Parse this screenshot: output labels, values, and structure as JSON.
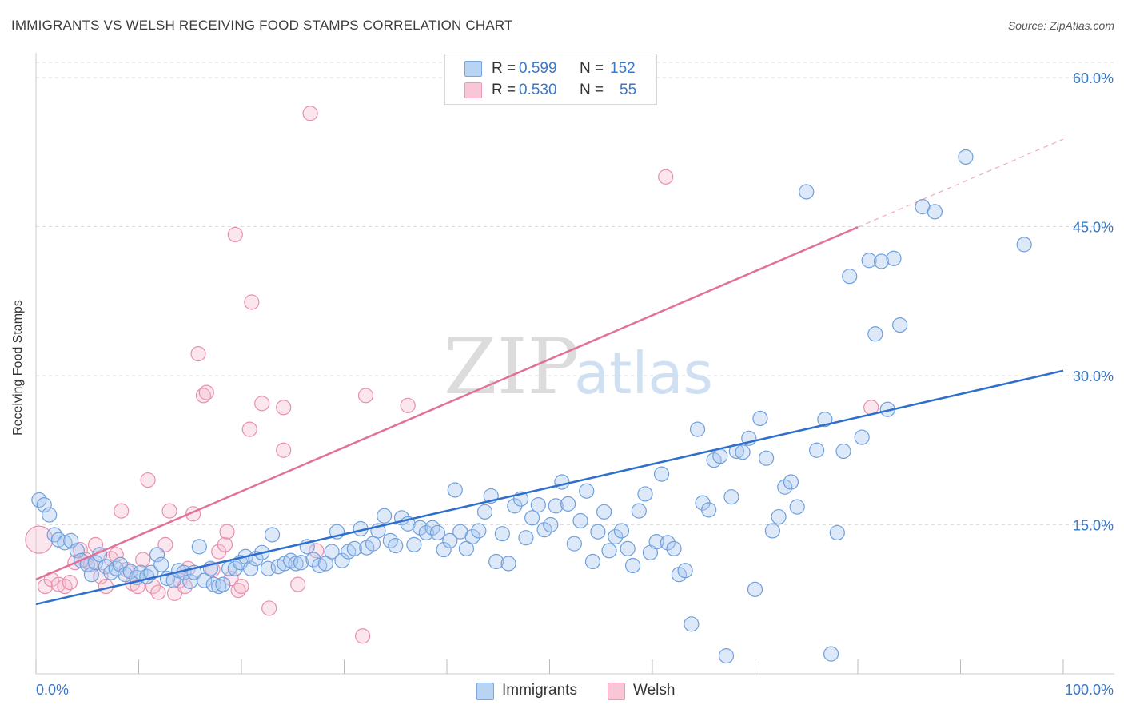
{
  "title": "IMMIGRANTS VS WELSH RECEIVING FOOD STAMPS CORRELATION CHART",
  "source": "Source: ZipAtlas.com",
  "watermark": {
    "zip": "ZIP",
    "atlas": "atlas"
  },
  "legend": {
    "rows": [
      {
        "r_label": "R =",
        "r_value": "0.599",
        "n_label": "N =",
        "n_value": "152"
      },
      {
        "r_label": "R =",
        "r_value": "0.530",
        "n_label": "N =",
        "n_value": "55"
      }
    ]
  },
  "bottom_legend": [
    "Immigrants",
    "Welsh"
  ],
  "colors": {
    "immigrants_fill": "#a9c8f0",
    "immigrants_stroke": "#6f9fdc",
    "immigrants_line": "#2f6fcc",
    "welsh_fill": "#f6b8cb",
    "welsh_stroke": "#e88fae",
    "welsh_line": "#e2719a",
    "tick_label": "#3a78c8",
    "grid": "#dddddd"
  },
  "chart_data": {
    "type": "scatter",
    "title": "IMMIGRANTS VS WELSH RECEIVING FOOD STAMPS CORRELATION CHART",
    "xlabel": "",
    "ylabel": "Receiving Food Stamps",
    "xlim": [
      0,
      100
    ],
    "ylim": [
      0,
      60
    ],
    "x_tick_labels": [
      "0.0%",
      "100.0%"
    ],
    "y_ticks": [
      15,
      30,
      45,
      60
    ],
    "y_tick_labels": [
      "15.0%",
      "30.0%",
      "45.0%",
      "60.0%"
    ],
    "grid": "horizontal dashed",
    "legend_placement": "top-center",
    "series": [
      {
        "name": "Immigrants",
        "r": 0.599,
        "n": 152,
        "trend": {
          "x": [
            0,
            100
          ],
          "y": [
            7.0,
            30.5
          ],
          "dashed_from": null
        },
        "points": [
          [
            0.3,
            17.5
          ],
          [
            0.8,
            17
          ],
          [
            1.3,
            16
          ],
          [
            1.8,
            14
          ],
          [
            2.2,
            13.5
          ],
          [
            2.8,
            13.2
          ],
          [
            3.4,
            13.4
          ],
          [
            4,
            12.4
          ],
          [
            4.4,
            11.4
          ],
          [
            5,
            11
          ],
          [
            5.4,
            10
          ],
          [
            5.8,
            11.2
          ],
          [
            6.2,
            12
          ],
          [
            6.8,
            10.8
          ],
          [
            7.3,
            10.2
          ],
          [
            7.8,
            10.6
          ],
          [
            8.2,
            11
          ],
          [
            8.7,
            10
          ],
          [
            9.2,
            10.3
          ],
          [
            9.8,
            9.7
          ],
          [
            10.2,
            10.2
          ],
          [
            10.8,
            9.8
          ],
          [
            11.2,
            10.2
          ],
          [
            11.8,
            12
          ],
          [
            12.2,
            11
          ],
          [
            12.8,
            9.6
          ],
          [
            13.4,
            9.4
          ],
          [
            13.9,
            10.4
          ],
          [
            14.4,
            10.2
          ],
          [
            15,
            9.3
          ],
          [
            15.4,
            10.2
          ],
          [
            15.9,
            12.8
          ],
          [
            16.4,
            9.4
          ],
          [
            17,
            10.6
          ],
          [
            17.3,
            9
          ],
          [
            17.8,
            8.8
          ],
          [
            18.2,
            9
          ],
          [
            18.8,
            10.6
          ],
          [
            19.4,
            10.6
          ],
          [
            19.9,
            11.2
          ],
          [
            20.4,
            11.8
          ],
          [
            20.9,
            10.6
          ],
          [
            21.4,
            11.6
          ],
          [
            22,
            12.2
          ],
          [
            22.6,
            10.6
          ],
          [
            23,
            14
          ],
          [
            23.6,
            10.8
          ],
          [
            24.2,
            11.1
          ],
          [
            24.8,
            11.4
          ],
          [
            25.3,
            11.1
          ],
          [
            25.8,
            11.2
          ],
          [
            26.4,
            12.8
          ],
          [
            27,
            11.5
          ],
          [
            27.6,
            10.9
          ],
          [
            28.2,
            11.1
          ],
          [
            28.8,
            12.3
          ],
          [
            29.3,
            14.3
          ],
          [
            29.8,
            11.4
          ],
          [
            30.4,
            12.3
          ],
          [
            31,
            12.6
          ],
          [
            31.6,
            14.6
          ],
          [
            32.2,
            12.7
          ],
          [
            32.8,
            13.1
          ],
          [
            33.3,
            14.4
          ],
          [
            33.9,
            15.9
          ],
          [
            34.5,
            13.4
          ],
          [
            35,
            12.9
          ],
          [
            35.6,
            15.7
          ],
          [
            36.2,
            15.1
          ],
          [
            36.8,
            13
          ],
          [
            37.4,
            14.7
          ],
          [
            38,
            14.2
          ],
          [
            38.6,
            14.7
          ],
          [
            39.1,
            14.2
          ],
          [
            39.7,
            12.5
          ],
          [
            40.3,
            13.4
          ],
          [
            40.8,
            18.5
          ],
          [
            41.3,
            14.3
          ],
          [
            41.9,
            12.6
          ],
          [
            42.5,
            13.8
          ],
          [
            43.1,
            14.4
          ],
          [
            43.7,
            16.3
          ],
          [
            44.3,
            17.9
          ],
          [
            44.8,
            11.3
          ],
          [
            45.4,
            14.1
          ],
          [
            46,
            11.1
          ],
          [
            46.6,
            16.9
          ],
          [
            47.2,
            17.6
          ],
          [
            47.7,
            13.7
          ],
          [
            48.3,
            15.7
          ],
          [
            48.9,
            17
          ],
          [
            49.5,
            14.5
          ],
          [
            50.1,
            15
          ],
          [
            50.6,
            16.9
          ],
          [
            51.2,
            19.3
          ],
          [
            51.8,
            17.1
          ],
          [
            52.4,
            13.1
          ],
          [
            53,
            15.4
          ],
          [
            53.6,
            18.4
          ],
          [
            54.2,
            11.3
          ],
          [
            54.7,
            14.3
          ],
          [
            55.3,
            16.3
          ],
          [
            55.8,
            12.4
          ],
          [
            56.4,
            13.8
          ],
          [
            57,
            14.4
          ],
          [
            57.6,
            12.6
          ],
          [
            58.1,
            10.9
          ],
          [
            58.7,
            16.4
          ],
          [
            59.3,
            18.1
          ],
          [
            59.8,
            12.2
          ],
          [
            60.4,
            13.3
          ],
          [
            60.9,
            20.1
          ],
          [
            61.5,
            13.2
          ],
          [
            62.1,
            12.6
          ],
          [
            62.6,
            10
          ],
          [
            63.2,
            10.4
          ],
          [
            63.8,
            5
          ],
          [
            64.4,
            24.6
          ],
          [
            64.9,
            17.2
          ],
          [
            65.5,
            16.5
          ],
          [
            66,
            21.5
          ],
          [
            66.6,
            21.9
          ],
          [
            67.2,
            1.8
          ],
          [
            67.7,
            17.8
          ],
          [
            68.2,
            22.4
          ],
          [
            68.8,
            22.3
          ],
          [
            69.4,
            23.7
          ],
          [
            70,
            8.5
          ],
          [
            70.5,
            25.7
          ],
          [
            71.1,
            21.7
          ],
          [
            71.7,
            14.4
          ],
          [
            72.3,
            15.8
          ],
          [
            72.9,
            18.8
          ],
          [
            73.5,
            19.3
          ],
          [
            74.1,
            16.8
          ],
          [
            75,
            48.5
          ],
          [
            76,
            22.5
          ],
          [
            76.8,
            25.6
          ],
          [
            77.4,
            2
          ],
          [
            78,
            14.2
          ],
          [
            78.6,
            22.4
          ],
          [
            79.2,
            40
          ],
          [
            80.4,
            23.8
          ],
          [
            81.1,
            41.6
          ],
          [
            81.7,
            34.2
          ],
          [
            82.3,
            41.5
          ],
          [
            82.9,
            26.6
          ],
          [
            83.5,
            41.8
          ],
          [
            84.1,
            35.1
          ],
          [
            86.3,
            47
          ],
          [
            87.5,
            46.5
          ],
          [
            90.5,
            52
          ],
          [
            96.2,
            43.2
          ]
        ]
      },
      {
        "name": "Welsh",
        "r": 0.53,
        "n": 55,
        "trend": {
          "x": [
            0,
            100
          ],
          "y": [
            9.5,
            53.8
          ],
          "solid_until_x": 80
        },
        "points": [
          [
            0.3,
            13.5
          ],
          [
            0.9,
            8.8
          ],
          [
            1.5,
            9.5
          ],
          [
            2.2,
            9
          ],
          [
            2.8,
            8.8
          ],
          [
            3.3,
            9.2
          ],
          [
            3.8,
            11.2
          ],
          [
            4.3,
            12.5
          ],
          [
            4.8,
            11.5
          ],
          [
            5.3,
            11
          ],
          [
            5.8,
            13
          ],
          [
            6.3,
            9.8
          ],
          [
            6.8,
            8.8
          ],
          [
            7.3,
            11.6
          ],
          [
            7.8,
            12
          ],
          [
            8.3,
            16.4
          ],
          [
            8.8,
            10.5
          ],
          [
            9.4,
            9.1
          ],
          [
            9.9,
            8.8
          ],
          [
            10.4,
            11.5
          ],
          [
            10.9,
            19.5
          ],
          [
            11.4,
            8.8
          ],
          [
            11.9,
            8.2
          ],
          [
            12.6,
            13
          ],
          [
            13,
            16.4
          ],
          [
            13.5,
            8.1
          ],
          [
            14,
            9.4
          ],
          [
            14.5,
            8.8
          ],
          [
            14.8,
            10.6
          ],
          [
            15.3,
            16.1
          ],
          [
            15.8,
            32.2
          ],
          [
            16.3,
            28
          ],
          [
            16.6,
            28.3
          ],
          [
            17.2,
            10.5
          ],
          [
            17.8,
            12.3
          ],
          [
            18.4,
            13
          ],
          [
            18.6,
            14.3
          ],
          [
            19,
            9.6
          ],
          [
            19.4,
            44.2
          ],
          [
            19.7,
            8.4
          ],
          [
            20,
            8.8
          ],
          [
            20.8,
            24.6
          ],
          [
            21,
            37.4
          ],
          [
            22,
            27.2
          ],
          [
            22.7,
            6.6
          ],
          [
            24.1,
            22.5
          ],
          [
            24.1,
            26.8
          ],
          [
            25.5,
            9
          ],
          [
            26.7,
            56.4
          ],
          [
            27.3,
            12.4
          ],
          [
            31.8,
            3.8
          ],
          [
            32.1,
            28
          ],
          [
            36.2,
            27
          ],
          [
            61.3,
            50
          ],
          [
            81.3,
            26.8
          ]
        ]
      }
    ]
  }
}
